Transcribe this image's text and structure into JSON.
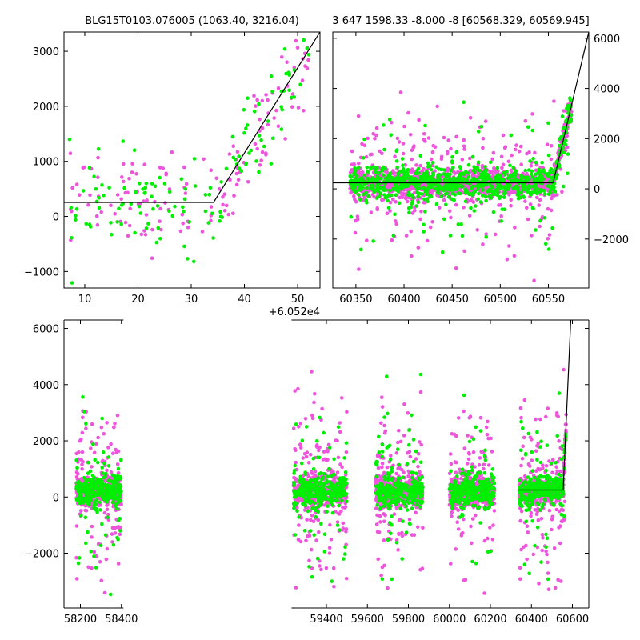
{
  "colors": {
    "series_a": "#ee55dd",
    "series_b": "#00ee00",
    "model": "#000000"
  },
  "chart_data": [
    {
      "type": "scatter",
      "panel": "top-left",
      "title": "BLG15T0103.076005 (1063.40, 3216.04)",
      "xlim": [
        6.1,
        54.2
      ],
      "ylim": [
        -1300,
        3350
      ],
      "xticks": [
        10,
        20,
        30,
        40,
        50
      ],
      "yticks": [
        -1000,
        0,
        1000,
        2000,
        3000
      ],
      "offset_label": "+6.052e4",
      "grid": false,
      "series": [
        {
          "color": "series_a",
          "count": 140,
          "style": "scattered-dots"
        },
        {
          "color": "series_b",
          "count": 130,
          "style": "scattered-dots"
        }
      ],
      "model_line": {
        "x": [
          6.1,
          34.2,
          54.2
        ],
        "y": [
          255,
          255,
          3350
        ]
      }
    },
    {
      "type": "scatter",
      "panel": "top-right",
      "title": "3 647 1598.33 -8.000 -8 [60568.329, 60569.945]",
      "xlim": [
        60326,
        60592
      ],
      "ylim": [
        -3950,
        6250
      ],
      "xticks": [
        60350,
        60400,
        60450,
        60500,
        60550
      ],
      "yticks": [
        -2000,
        0,
        2000,
        4000,
        6000
      ],
      "y_axis_side": "right",
      "grid": false,
      "series": [
        {
          "color": "series_a",
          "count": 1400,
          "style": "dense-band"
        },
        {
          "color": "series_b",
          "count": 800,
          "style": "dense-band"
        }
      ],
      "model_line": {
        "x": [
          60326,
          60555,
          60592
        ],
        "y": [
          240,
          240,
          6250
        ]
      }
    },
    {
      "type": "scatter",
      "panel": "bottom",
      "title": "",
      "xlim": [
        58120,
        60680
      ],
      "ylim": [
        -3950,
        6300
      ],
      "xticks": [
        58200,
        58400,
        59400,
        59600,
        59800,
        60000,
        60200,
        60400,
        60600
      ],
      "yticks": [
        -2000,
        0,
        2000,
        4000,
        6000
      ],
      "broken_axis_between": [
        58410,
        59230
      ],
      "grid": false,
      "segments": [
        {
          "x": [
            58180,
            58400
          ]
        },
        {
          "x": [
            59240,
            59500
          ]
        },
        {
          "x": [
            59640,
            59870
          ]
        },
        {
          "x": [
            60000,
            60220
          ]
        },
        {
          "x": [
            60340,
            60570
          ]
        }
      ],
      "series": [
        {
          "color": "series_a",
          "count": 3000,
          "style": "dense-band"
        },
        {
          "color": "series_b",
          "count": 1500,
          "style": "dense-band"
        }
      ],
      "model_line": {
        "x": [
          60330,
          60555,
          60592
        ],
        "y": [
          250,
          250,
          6300
        ]
      }
    }
  ]
}
